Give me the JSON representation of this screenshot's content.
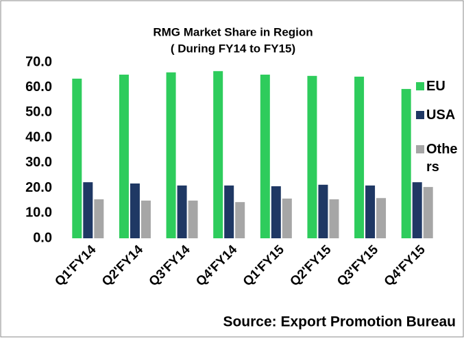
{
  "chart_data": {
    "type": "bar",
    "title": "RMG Market Share in Region",
    "subtitle": "( During FY14 to FY15)",
    "annotation": "Source: Export Promotion Bureau",
    "categories": [
      "Q1'FY14",
      "Q2'FY14",
      "Q3'FY14",
      "Q4'FY14",
      "Q1'FY15",
      "Q2'FY15",
      "Q3'FY15",
      "Q4'FY15"
    ],
    "series": [
      {
        "name": "EU",
        "color": "#2ecc5c",
        "values": [
          63.5,
          65.1,
          66.0,
          66.5,
          65.1,
          64.6,
          64.3,
          59.4
        ]
      },
      {
        "name": "USA",
        "color": "#1f3864",
        "values": [
          22.3,
          21.8,
          21.0,
          21.0,
          20.7,
          21.3,
          21.0,
          22.3
        ]
      },
      {
        "name": "Others",
        "color": "#a6a6a6",
        "values": [
          15.5,
          15.0,
          15.0,
          14.4,
          15.8,
          15.5,
          16.0,
          20.4
        ]
      }
    ],
    "ylim": [
      0,
      70
    ],
    "yticks": [
      {
        "value": 0,
        "label": "0.0"
      },
      {
        "value": 10,
        "label": "10.0"
      },
      {
        "value": 20,
        "label": "20.0"
      },
      {
        "value": 30,
        "label": "30.0"
      },
      {
        "value": 40,
        "label": "40.0"
      },
      {
        "value": 50,
        "label": "50.0"
      },
      {
        "value": 60,
        "label": "60.0"
      },
      {
        "value": 70,
        "label": "70.0"
      }
    ],
    "grid": false,
    "legend": "right"
  }
}
